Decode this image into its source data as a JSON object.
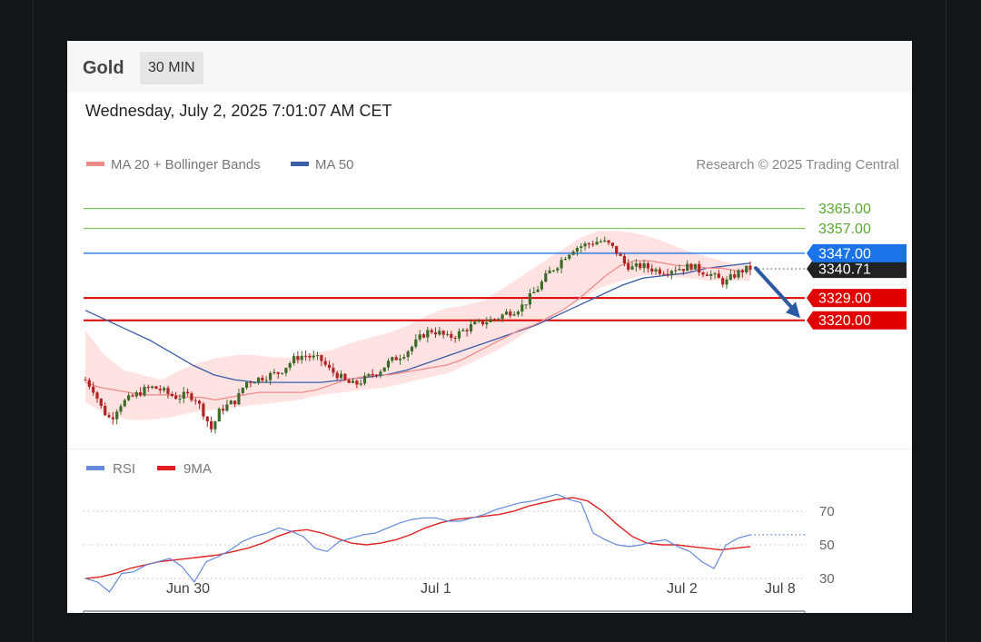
{
  "header": {
    "instrument": "Gold",
    "timeframe": "30 MIN",
    "timestamp": "Wednesday, July 2, 2025 7:01:07 AM CET"
  },
  "legend": {
    "ma20_label": "MA 20 + Bollinger Bands",
    "ma50_label": "MA 50",
    "credit": "Research © 2025 Trading Central"
  },
  "rsi_legend": {
    "rsi_label": "RSI",
    "ma9_label": "9MA"
  },
  "colors": {
    "up_candle": "#3d6b2a",
    "down_candle": "#b22222",
    "ma20": "#f08b8b",
    "bollinger_fill": "#ffd9d9",
    "ma50": "#3b5ca8",
    "resistance_green": "#7fc55a",
    "pivot_blue": "#1a73e8",
    "support_red": "#e00000",
    "current_price_bg": "#222222",
    "rsi": "#6688dd",
    "rsi_ma": "#e02020",
    "arrow": "#2c5aa0"
  },
  "chart_data": {
    "type": "candlestick",
    "instrument": "Gold",
    "timeframe": "30 MIN",
    "price_ylim": [
      3268,
      3374
    ],
    "x_tick_labels": [
      "Jun 30",
      "Jul 1",
      "Jul 2",
      "Jul 8"
    ],
    "levels": [
      {
        "value": 3365.0,
        "label": "3365.00",
        "kind": "resistance"
      },
      {
        "value": 3357.0,
        "label": "3357.00",
        "kind": "resistance"
      },
      {
        "value": 3347.0,
        "label": "3347.00",
        "kind": "pivot"
      },
      {
        "value": 3329.0,
        "label": "3329.00",
        "kind": "support"
      },
      {
        "value": 3320.0,
        "label": "3320.00",
        "kind": "support"
      }
    ],
    "current_price": {
      "value": 3340.71,
      "label": "3340.71"
    },
    "arrow": {
      "from": 3341,
      "to": 3322,
      "direction": "down"
    },
    "close_path": [
      3296,
      3292,
      3284,
      3280,
      3286,
      3288,
      3290,
      3292,
      3293,
      3292,
      3290,
      3289,
      3290,
      3289,
      3283,
      3276,
      3284,
      3286,
      3288,
      3295,
      3296,
      3297,
      3298,
      3299,
      3302,
      3305,
      3306,
      3305,
      3304,
      3300,
      3298,
      3295,
      3294,
      3296,
      3298,
      3300,
      3303,
      3305,
      3307,
      3310,
      3314,
      3316,
      3315,
      3313,
      3314,
      3316,
      3318,
      3319,
      3320,
      3321,
      3323,
      3324,
      3326,
      3330,
      3334,
      3339,
      3342,
      3346,
      3349,
      3350,
      3351,
      3352,
      3351,
      3348,
      3343,
      3341,
      3342,
      3341,
      3340,
      3340,
      3341,
      3341,
      3342,
      3340,
      3339,
      3337,
      3335,
      3338,
      3340,
      3341
    ],
    "ma20": [
      3295,
      3293,
      3292,
      3291,
      3290,
      3290,
      3290,
      3289,
      3289,
      3288,
      3289,
      3290,
      3291,
      3291,
      3291,
      3291,
      3292,
      3294,
      3296,
      3297,
      3298,
      3298,
      3299,
      3300,
      3301,
      3302,
      3304,
      3307,
      3310,
      3313,
      3316,
      3318,
      3321,
      3324,
      3328,
      3333,
      3338,
      3342,
      3344,
      3344,
      3343,
      3342,
      3342,
      3341,
      3341,
      3340,
      3340
    ],
    "bollinger_upper": [
      3316,
      3306,
      3300,
      3298,
      3296,
      3300,
      3303,
      3305,
      3306,
      3306,
      3305,
      3305,
      3307,
      3308,
      3311,
      3313,
      3315,
      3318,
      3322,
      3325,
      3326,
      3328,
      3333,
      3338,
      3343,
      3348,
      3353,
      3356,
      3356,
      3355,
      3353,
      3350,
      3347,
      3345,
      3343,
      3342
    ],
    "bollinger_lower": [
      3287,
      3282,
      3280,
      3280,
      3281,
      3283,
      3284,
      3285,
      3286,
      3287,
      3288,
      3290,
      3291,
      3292,
      3293,
      3295,
      3297,
      3299,
      3303,
      3307,
      3312,
      3318,
      3323,
      3328,
      3333,
      3336,
      3338,
      3338,
      3337,
      3336,
      3336,
      3336
    ],
    "ma50": [
      3324,
      3320,
      3316,
      3312,
      3307,
      3302,
      3298,
      3296,
      3295,
      3295,
      3295,
      3295,
      3296,
      3297,
      3298,
      3300,
      3303,
      3306,
      3309,
      3312,
      3315,
      3318,
      3322,
      3326,
      3330,
      3334,
      3337,
      3338,
      3339,
      3341,
      3342,
      3343
    ],
    "rsi_ylim": [
      15,
      85
    ],
    "rsi_levels": [
      70,
      50,
      30
    ],
    "rsi_tick_labels": [
      "70",
      "50",
      "30"
    ],
    "rsi": [
      30,
      28,
      22,
      33,
      34,
      38,
      40,
      42,
      37,
      28,
      40,
      43,
      47,
      52,
      55,
      57,
      60,
      58,
      55,
      48,
      46,
      52,
      54,
      56,
      57,
      60,
      63,
      65,
      66,
      66,
      64,
      64,
      66,
      68,
      71,
      73,
      75,
      76,
      78,
      80,
      77,
      75,
      57,
      53,
      50,
      49,
      50,
      52,
      53,
      49,
      46,
      40,
      36,
      50,
      54,
      56
    ],
    "rsi_ma": [
      30,
      31,
      33,
      36,
      38,
      40,
      41,
      42,
      43,
      44,
      46,
      48,
      51,
      55,
      58,
      59,
      57,
      54,
      51,
      50,
      51,
      53,
      56,
      60,
      63,
      65,
      66,
      67,
      68,
      70,
      73,
      75,
      77,
      78,
      76,
      70,
      62,
      55,
      51,
      50,
      50,
      49,
      48,
      47,
      48,
      49
    ]
  }
}
